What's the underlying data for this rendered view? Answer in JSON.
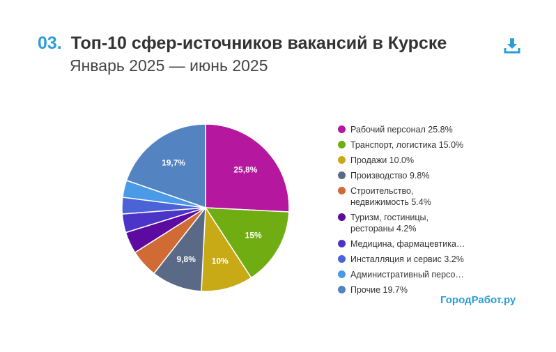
{
  "header": {
    "number": "03.",
    "title": "Топ-10 сфер-источников вакансий в Курске",
    "subtitle": "Январь 2025 — июнь 2025"
  },
  "icons": {
    "download": "download-icon"
  },
  "brand": "ГородРабот.ру",
  "chart_data": {
    "type": "pie",
    "title": "Топ-10 сфер-источников вакансий в Курске",
    "subtitle": "Январь 2025 — июнь 2025",
    "legend_position": "right",
    "slices": [
      {
        "label": "Рабочий персонал",
        "value": 25.8,
        "legend": "Рабочий персонал 25.8%",
        "slice_label": "25,8%",
        "color": "#b5179e"
      },
      {
        "label": "Транспорт, логистика",
        "value": 15.0,
        "legend": "Транспорт, логистика 15.0%",
        "slice_label": "15%",
        "color": "#70ad12"
      },
      {
        "label": "Продажи",
        "value": 10.0,
        "legend": "Продажи 10.0%",
        "slice_label": "10%",
        "color": "#c8aa16"
      },
      {
        "label": "Производство",
        "value": 9.8,
        "legend": "Производство 9.8%",
        "slice_label": "9,8%",
        "color": "#5a6a86"
      },
      {
        "label": "Строительство, недвижимость",
        "value": 5.4,
        "legend": "Строительство,\nнедвижимость 5.4%",
        "slice_label": "",
        "color": "#d16b35"
      },
      {
        "label": "Туризм, гостиницы, рестораны",
        "value": 4.2,
        "legend": "Туризм, гостиницы,\nрестораны 4.2%",
        "slice_label": "",
        "color": "#5c0aa0"
      },
      {
        "label": "Медицина, фармацевтика",
        "value": 3.6,
        "legend": "Медицина, фармацевтика…",
        "slice_label": "",
        "color": "#4b35c8"
      },
      {
        "label": "Инсталляция и сервис",
        "value": 3.2,
        "legend": "Инсталляция и сервис 3.2%",
        "slice_label": "",
        "color": "#4a63d6"
      },
      {
        "label": "Административный персонал",
        "value": 3.3,
        "legend": "Административный персо…",
        "slice_label": "",
        "color": "#4a9ae8"
      },
      {
        "label": "Прочие",
        "value": 19.7,
        "legend": "Прочие 19.7%",
        "slice_label": "19,7%",
        "color": "#5383c1"
      }
    ]
  }
}
